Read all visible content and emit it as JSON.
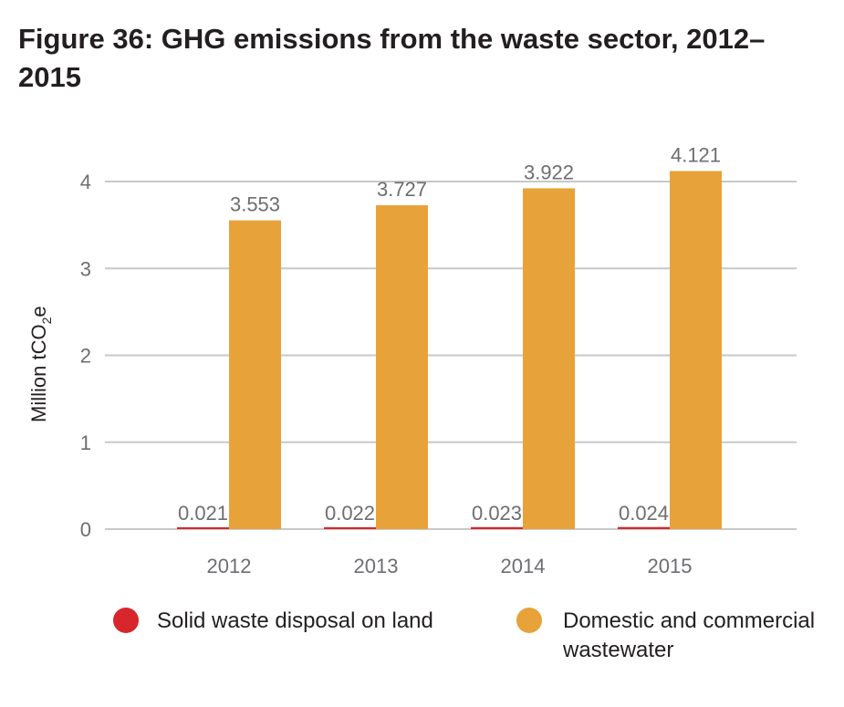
{
  "title": "Figure 36: GHG emissions from the waste sector, 2012–2015",
  "chart_data": {
    "type": "bar",
    "categories": [
      "2012",
      "2013",
      "2014",
      "2015"
    ],
    "series": [
      {
        "name": "Solid waste disposal on land",
        "values": [
          0.021,
          0.022,
          0.023,
          0.024
        ],
        "labels": [
          "0.021",
          "0.022",
          "0.023",
          "0.024"
        ],
        "color": "#d7262c"
      },
      {
        "name": "Domestic and commercial wastewater",
        "values": [
          3.553,
          3.727,
          3.922,
          4.121
        ],
        "labels": [
          "3.553",
          "3.727",
          "3.922",
          "4.121"
        ],
        "color": "#e8a23a"
      }
    ],
    "title": "Figure 36: GHG emissions from the waste sector, 2012–2015",
    "xlabel": "",
    "ylabel_main": "Million tCO",
    "ylabel_sub": "2",
    "ylabel_tail": "e",
    "yticks": [
      "0",
      "1",
      "2",
      "3",
      "4"
    ],
    "ylim": [
      0,
      4.2
    ],
    "grid": true,
    "legend_position": "bottom",
    "legend": [
      "Solid waste disposal on land",
      "Domestic and commercial",
      "wastewater"
    ]
  }
}
